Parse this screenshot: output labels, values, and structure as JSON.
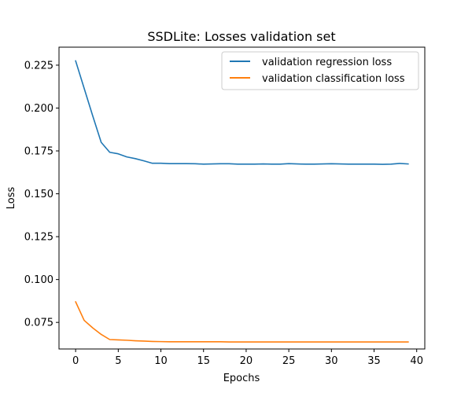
{
  "chart_data": {
    "type": "line",
    "title": "SSDLite: Losses validation set",
    "xlabel": "Epochs",
    "ylabel": "Loss",
    "xlim": [
      -1.95,
      40.95
    ],
    "ylim": [
      0.0595,
      0.2355
    ],
    "xticks": [
      0,
      5,
      10,
      15,
      20,
      25,
      30,
      35,
      40
    ],
    "yticks": [
      0.075,
      0.1,
      0.125,
      0.15,
      0.175,
      0.2,
      0.225
    ],
    "xtick_labels": [
      "0",
      "5",
      "10",
      "15",
      "20",
      "25",
      "30",
      "35",
      "40"
    ],
    "ytick_labels": [
      "0.075",
      "0.100",
      "0.125",
      "0.150",
      "0.175",
      "0.200",
      "0.225"
    ],
    "grid": false,
    "legend": "top-right",
    "x": [
      0,
      1,
      2,
      3,
      4,
      5,
      6,
      7,
      8,
      9,
      10,
      11,
      12,
      13,
      14,
      15,
      16,
      17,
      18,
      19,
      20,
      21,
      22,
      23,
      24,
      25,
      26,
      27,
      28,
      29,
      30,
      31,
      32,
      33,
      34,
      35,
      36,
      37,
      38,
      39
    ],
    "series": [
      {
        "name": "validation regression loss",
        "color": "#1f77b4",
        "values": [
          0.2275,
          0.2115,
          0.1955,
          0.18,
          0.1742,
          0.1733,
          0.1715,
          0.1705,
          0.1692,
          0.1678,
          0.1678,
          0.1676,
          0.1676,
          0.1676,
          0.1675,
          0.1673,
          0.1674,
          0.1675,
          0.1675,
          0.1673,
          0.1673,
          0.1673,
          0.1674,
          0.1673,
          0.1673,
          0.1676,
          0.1674,
          0.1673,
          0.1673,
          0.1674,
          0.1675,
          0.1674,
          0.1673,
          0.1673,
          0.1673,
          0.1673,
          0.1672,
          0.1673,
          0.1677,
          0.1674
        ]
      },
      {
        "name": "validation classification loss",
        "color": "#ff7f0e",
        "values": [
          0.087,
          0.0762,
          0.0718,
          0.068,
          0.065,
          0.0648,
          0.0646,
          0.0643,
          0.0641,
          0.0639,
          0.0638,
          0.0637,
          0.0637,
          0.0637,
          0.0637,
          0.0637,
          0.0637,
          0.0637,
          0.0636,
          0.0636,
          0.0636,
          0.0636,
          0.0636,
          0.0636,
          0.0636,
          0.0636,
          0.0636,
          0.0636,
          0.0636,
          0.0636,
          0.0636,
          0.0636,
          0.0636,
          0.0636,
          0.0636,
          0.0636,
          0.0636,
          0.0636,
          0.0636,
          0.0636
        ]
      }
    ]
  }
}
